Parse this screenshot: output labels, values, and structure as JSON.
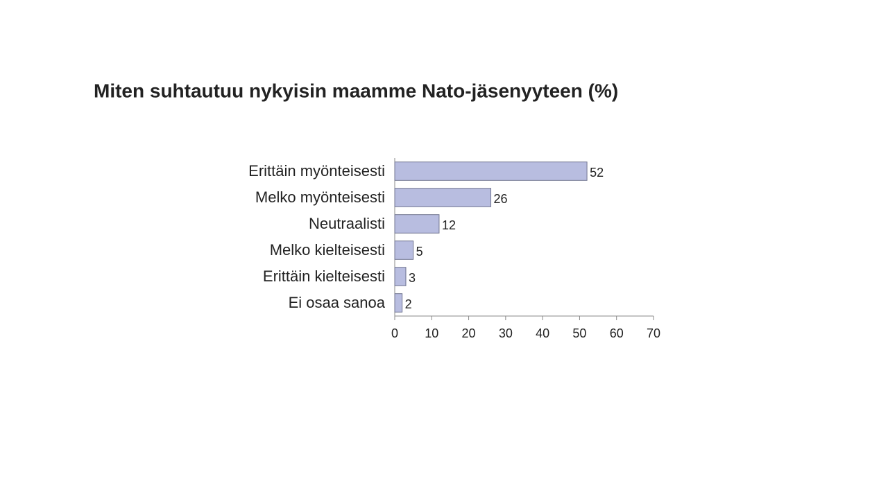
{
  "chart_data": {
    "type": "bar",
    "orientation": "horizontal",
    "title": "Miten suhtautuu nykyisin maamme Nato-jäsenyyteen (%)",
    "categories": [
      "Erittäin myönteisesti",
      "Melko myönteisesti",
      "Neutraalisti",
      "Melko kielteisesti",
      "Erittäin kielteisesti",
      "Ei osaa sanoa"
    ],
    "values": [
      52,
      26,
      12,
      5,
      3,
      2
    ],
    "color": "#b8bde0",
    "xlim": [
      0,
      70
    ],
    "xticks": [
      0,
      10,
      20,
      30,
      40,
      50,
      60,
      70
    ],
    "grid": false
  }
}
